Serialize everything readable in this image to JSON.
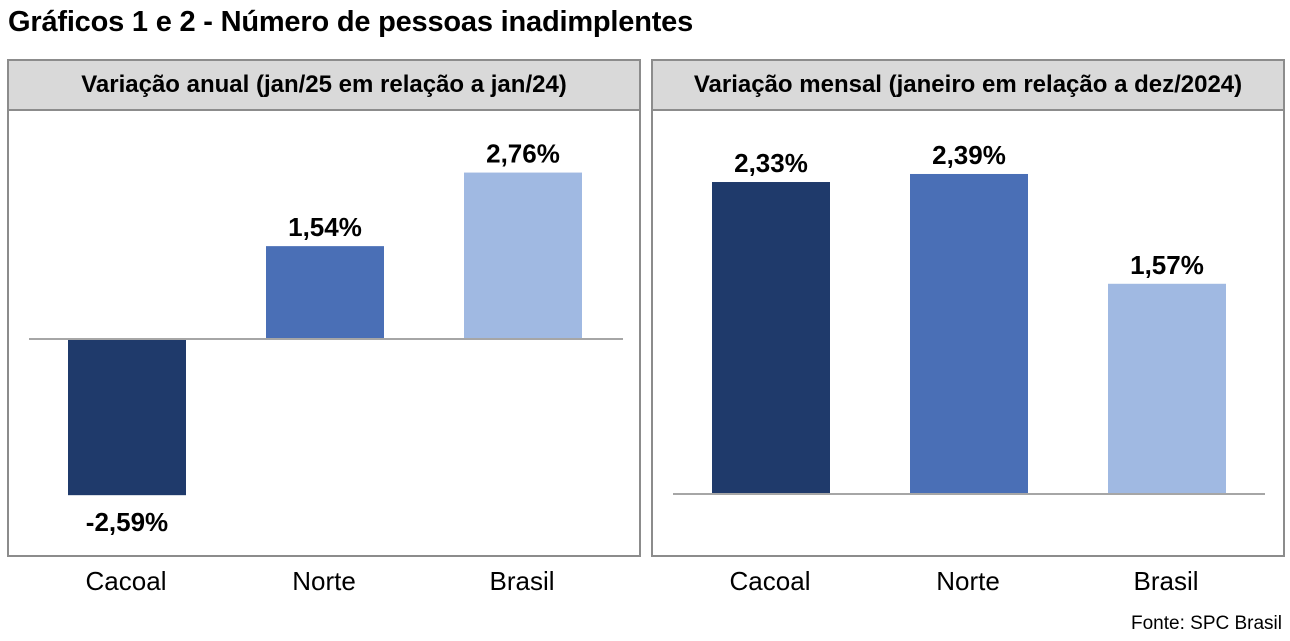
{
  "title": "Gráficos 1 e 2 - Número de pessoas inadimplentes",
  "source": "Fonte: SPC Brasil",
  "colors": {
    "Cacoal": "#1f3a6b",
    "Norte": "#4a6fb6",
    "Brasil": "#a0b9e2"
  },
  "chart_data": [
    {
      "type": "bar",
      "title": "Variação anual (jan/25 em relação a jan/24)",
      "categories": [
        "Cacoal",
        "Norte",
        "Brasil"
      ],
      "values": [
        -2.59,
        1.54,
        2.76
      ],
      "value_labels": [
        "-2,59%",
        "1,54%",
        "2,76%"
      ],
      "ylim": [
        -2.59,
        2.76
      ],
      "grid": false,
      "legend": "none"
    },
    {
      "type": "bar",
      "title": "Variação mensal (janeiro em relação a dez/2024)",
      "categories": [
        "Cacoal",
        "Norte",
        "Brasil"
      ],
      "values": [
        2.33,
        2.39,
        1.57
      ],
      "value_labels": [
        "2,33%",
        "2,39%",
        "1,57%"
      ],
      "ylim": [
        0,
        2.39
      ],
      "grid": false,
      "legend": "none"
    }
  ]
}
